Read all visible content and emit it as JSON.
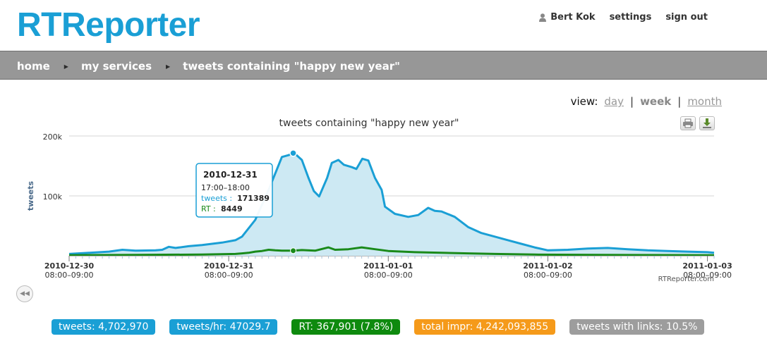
{
  "app": {
    "logo": "RTReporter"
  },
  "user_nav": {
    "username": "Bert Kok",
    "settings": "settings",
    "sign_out": "sign out"
  },
  "breadcrumb": {
    "home": "home",
    "services": "my services",
    "current": "tweets containing \"happy new year\""
  },
  "view": {
    "label": "view:",
    "options": [
      {
        "label": "day",
        "active": false
      },
      {
        "label": "week",
        "active": true
      },
      {
        "label": "month",
        "active": false
      }
    ]
  },
  "chart_data": {
    "type": "area",
    "title": "tweets containing \"happy new year\"",
    "ylabel": "tweets",
    "ylim": [
      0,
      200000
    ],
    "y_ticks": [
      "100k",
      "200k"
    ],
    "x_ticks": [
      {
        "date": "2010-12-30",
        "time": "08:00–09:00"
      },
      {
        "date": "2010-12-31",
        "time": "08:00–09:00"
      },
      {
        "date": "2011-01-01",
        "time": "08:00–09:00"
      },
      {
        "date": "2011-01-02",
        "time": "08:00–09:00"
      },
      {
        "date": "2011-01-03",
        "time": "08:00–09:00"
      }
    ],
    "x_unit": "hours",
    "x_start": "2010-12-30 08:00",
    "x_range": [
      0,
      97
    ],
    "series": [
      {
        "name": "tweets",
        "color": "#1a9fd5",
        "fill": "#cde9f3",
        "points": [
          [
            0,
            3000
          ],
          [
            3,
            5000
          ],
          [
            6,
            7000
          ],
          [
            8,
            10000
          ],
          [
            10,
            8500
          ],
          [
            13,
            9000
          ],
          [
            14,
            10000
          ],
          [
            15,
            15000
          ],
          [
            16,
            13000
          ],
          [
            18,
            16000
          ],
          [
            20,
            18000
          ],
          [
            23,
            22000
          ],
          [
            25,
            26000
          ],
          [
            26,
            32000
          ],
          [
            28,
            60000
          ],
          [
            30,
            110000
          ],
          [
            32,
            165000
          ],
          [
            33,
            168000
          ],
          [
            33.7,
            171389
          ],
          [
            34,
            170000
          ],
          [
            35,
            160000
          ],
          [
            36,
            130000
          ],
          [
            36.8,
            108000
          ],
          [
            37.6,
            99000
          ],
          [
            38.8,
            130000
          ],
          [
            39.5,
            155000
          ],
          [
            40.5,
            160000
          ],
          [
            41.3,
            152000
          ],
          [
            42.5,
            148000
          ],
          [
            43.2,
            145000
          ],
          [
            44.1,
            162000
          ],
          [
            45,
            159000
          ],
          [
            46,
            130000
          ],
          [
            47,
            110000
          ],
          [
            47.5,
            82000
          ],
          [
            49,
            70000
          ],
          [
            51,
            65000
          ],
          [
            52.5,
            68000
          ],
          [
            54,
            80000
          ],
          [
            55,
            75000
          ],
          [
            56,
            74000
          ],
          [
            58,
            65000
          ],
          [
            60,
            48000
          ],
          [
            62,
            38000
          ],
          [
            64,
            32000
          ],
          [
            66,
            26000
          ],
          [
            68,
            20000
          ],
          [
            70,
            14000
          ],
          [
            72,
            9000
          ],
          [
            75,
            10000
          ],
          [
            78,
            12000
          ],
          [
            81,
            13000
          ],
          [
            84,
            11000
          ],
          [
            87,
            9000
          ],
          [
            90,
            8000
          ],
          [
            93,
            7000
          ],
          [
            96,
            6000
          ],
          [
            97,
            5000
          ]
        ]
      },
      {
        "name": "RT",
        "color": "#1a8a1a",
        "points": [
          [
            0,
            1000
          ],
          [
            10,
            1500
          ],
          [
            20,
            2000
          ],
          [
            25,
            3000
          ],
          [
            26,
            4000
          ],
          [
            27,
            5000
          ],
          [
            28,
            7000
          ],
          [
            29,
            8000
          ],
          [
            30,
            10000
          ],
          [
            31,
            9000
          ],
          [
            32,
            8500
          ],
          [
            33.7,
            8449
          ],
          [
            35,
            9500
          ],
          [
            37,
            8500
          ],
          [
            39,
            14000
          ],
          [
            40,
            10000
          ],
          [
            42,
            11000
          ],
          [
            44,
            14000
          ],
          [
            46,
            11000
          ],
          [
            48,
            8000
          ],
          [
            52,
            6000
          ],
          [
            56,
            5000
          ],
          [
            60,
            4000
          ],
          [
            64,
            3000
          ],
          [
            70,
            2000
          ],
          [
            80,
            1500
          ],
          [
            90,
            1200
          ],
          [
            97,
            1000
          ]
        ]
      }
    ],
    "tooltip": {
      "date": "2010-12-31",
      "range": "17:00–18:00",
      "tweets_label": "tweets :",
      "tweets_value": "171389",
      "rt_label": "RT :",
      "rt_value": "8449"
    },
    "credit": "RTReporter.com"
  },
  "stats": [
    {
      "label": "tweets: 4,702,970",
      "color": "#1a9fd5"
    },
    {
      "label": "tweets/hr: 47029.7",
      "color": "#1a9fd5"
    },
    {
      "label": "RT: 367,901 (7.8%)",
      "color": "#0e8a0e"
    },
    {
      "label": "total impr: 4,242,093,855",
      "color": "#f59a1a"
    },
    {
      "label": "tweets with links: 10.5%",
      "color": "#9d9d9d"
    }
  ],
  "icons": {
    "user": "user-icon",
    "separator": "triangle-right-icon",
    "print": "print-icon",
    "download": "download-icon",
    "rewind": "rewind-icon"
  }
}
